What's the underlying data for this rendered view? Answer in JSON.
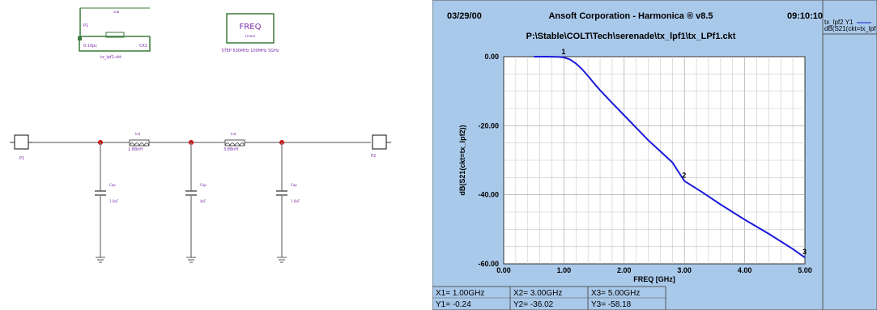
{
  "schematic": {
    "ports": [
      {
        "label": "P1"
      },
      {
        "label": "P2"
      }
    ],
    "freq_box": {
      "title": "FREQ",
      "subtitle": "Linear",
      "spec": "STEP 500MHz 100MHz 5GHz"
    },
    "subckt_labels": {
      "name": "tx_lpf1.ckt",
      "left": "0.10pc",
      "right": "CK1"
    },
    "inductors": [
      {
        "name": "Ind",
        "value": "1.88nH"
      },
      {
        "name": "Ind",
        "value": "3.88nH"
      }
    ],
    "capacitors": [
      {
        "name": "Cap",
        "value": "1.0pF"
      },
      {
        "name": "Cap",
        "value": "4pF"
      },
      {
        "name": "Cap",
        "value": "1.0pF"
      }
    ]
  },
  "plot": {
    "date": "03/29/00",
    "title": "Ansoft Corporation - Harmonica ® v8.5",
    "time": "09:10:10",
    "path": "P:\\Stable\\COLT\\Tech\\serenade\\tx_lpf1\\tx_LPf1.ckt",
    "colors": {
      "background": "#a9c9ea",
      "plot_area": "#ffffff",
      "trace": "#1a1adb",
      "grid": "#c8c8c8"
    },
    "readouts": [
      {
        "x": "X1= 1.00GHz",
        "y": "Y1= -0.24"
      },
      {
        "x": "X2= 3.00GHz",
        "y": "Y2= -36.02"
      },
      {
        "x": "X3= 5.00GHz",
        "y": "Y3= -58.18"
      }
    ],
    "legend": {
      "line1": "tx_lpf2  Y1",
      "line2": "dB(S21(ckt=tx_lpf"
    }
  },
  "chart_data": {
    "type": "line",
    "xlabel": "FREQ [GHz]",
    "ylabel": "dB(S21(ckt=tx_lpf2))",
    "xlim": [
      0,
      5
    ],
    "ylim": [
      -60,
      0
    ],
    "x_ticks": [
      "0.00",
      "1.00",
      "2.00",
      "3.00",
      "4.00",
      "5.00"
    ],
    "y_ticks": [
      "0.00",
      "-20.00",
      "-40.00",
      "-60.00"
    ],
    "grid": true,
    "series": [
      {
        "x": [
          0.5,
          0.7,
          0.9,
          1.0,
          1.1,
          1.2,
          1.3,
          1.4,
          1.5,
          1.6,
          1.8,
          2.0,
          2.2,
          2.4,
          2.6,
          2.8,
          3.0,
          3.3,
          3.6,
          4.0,
          4.4,
          4.8,
          5.0
        ],
        "y": [
          0,
          0,
          -0.05,
          -0.24,
          -0.8,
          -2.0,
          -3.6,
          -5.6,
          -7.7,
          -9.7,
          -13.4,
          -17.0,
          -20.6,
          -24.2,
          -27.4,
          -30.6,
          -36.02,
          -39.3,
          -42.8,
          -47.2,
          -51.3,
          -55.7,
          -58.18
        ]
      }
    ],
    "markers": [
      {
        "label": "1",
        "x": 1.0,
        "y": -0.24
      },
      {
        "label": "2",
        "x": 3.0,
        "y": -36.02
      },
      {
        "label": "3",
        "x": 5.0,
        "y": -58.18
      }
    ]
  }
}
